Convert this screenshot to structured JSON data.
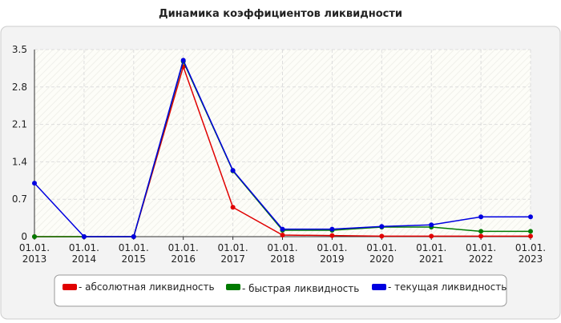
{
  "chart_data": {
    "type": "line",
    "title": "Динамика коэффициентов ликвидности",
    "categories": [
      [
        "01.01.",
        "2013"
      ],
      [
        "01.01.",
        "2014"
      ],
      [
        "01.01.",
        "2015"
      ],
      [
        "01.01.",
        "2016"
      ],
      [
        "01.01.",
        "2017"
      ],
      [
        "01.01.",
        "2018"
      ],
      [
        "01.01.",
        "2019"
      ],
      [
        "01.01.",
        "2020"
      ],
      [
        "01.01.",
        "2021"
      ],
      [
        "01.01.",
        "2022"
      ],
      [
        "01.01.",
        "2023"
      ]
    ],
    "series": [
      {
        "name": "- абсолютная ликвидность",
        "color": "#e00000",
        "values": [
          0,
          0,
          0,
          3.18,
          0.55,
          0.03,
          0.02,
          0.01,
          0.01,
          0.01,
          0.01
        ]
      },
      {
        "name": "- быстрая ликвидность",
        "color": "#007a00",
        "values": [
          0,
          0,
          0,
          3.28,
          1.23,
          0.12,
          0.12,
          0.18,
          0.18,
          0.1,
          0.1
        ]
      },
      {
        "name": "- текущая ликвидность",
        "color": "#0000e0",
        "values": [
          1.0,
          0,
          0,
          3.3,
          1.24,
          0.14,
          0.14,
          0.19,
          0.22,
          0.37,
          0.37
        ]
      }
    ],
    "ylim": [
      0,
      3.5
    ],
    "yticks": [
      0,
      0.7,
      1.4,
      2.1,
      2.8,
      3.5
    ],
    "grid": true
  }
}
